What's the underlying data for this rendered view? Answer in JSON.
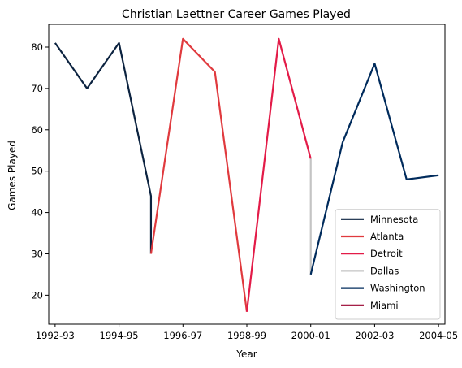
{
  "chart_data": {
    "type": "line",
    "title": "Christian Laettner Career Games Played",
    "xlabel": "Year",
    "ylabel": "Games Played",
    "x_tick_labels": [
      "1992-93",
      "1994-95",
      "1996-97",
      "1998-99",
      "2000-01",
      "2002-03",
      "2004-05"
    ],
    "xlim": [
      1992.3,
      2004.7
    ],
    "ylim": [
      13,
      85.5
    ],
    "yticks": [
      20,
      30,
      40,
      50,
      60,
      70,
      80
    ],
    "grid": false,
    "legend_position": "lower right",
    "series": [
      {
        "name": "Minnesota",
        "color": "#0c2340",
        "x": [
          1992.5,
          1993.5,
          1994.5,
          1995.5,
          1995.5
        ],
        "y": [
          81,
          70,
          81,
          44,
          30
        ]
      },
      {
        "name": "Atlanta",
        "color": "#e03a3e",
        "x": [
          1995.5,
          1996.5,
          1997.5,
          1998.5
        ],
        "y": [
          30,
          82,
          74,
          16
        ]
      },
      {
        "name": "Detroit",
        "color": "#e31b48",
        "x": [
          1998.5,
          1999.5,
          2000.5
        ],
        "y": [
          16,
          82,
          53
        ]
      },
      {
        "name": "Dallas",
        "color": "#c4c4c4",
        "x": [
          2000.5,
          2000.5
        ],
        "y": [
          53,
          25
        ]
      },
      {
        "name": "Washington",
        "color": "#002b5c",
        "x": [
          2000.5,
          2001.5,
          2002.5,
          2003.5,
          2004.5
        ],
        "y": [
          25,
          57,
          76,
          48,
          49
        ]
      },
      {
        "name": "Miami",
        "color": "#98002e",
        "x": [],
        "y": []
      }
    ]
  }
}
